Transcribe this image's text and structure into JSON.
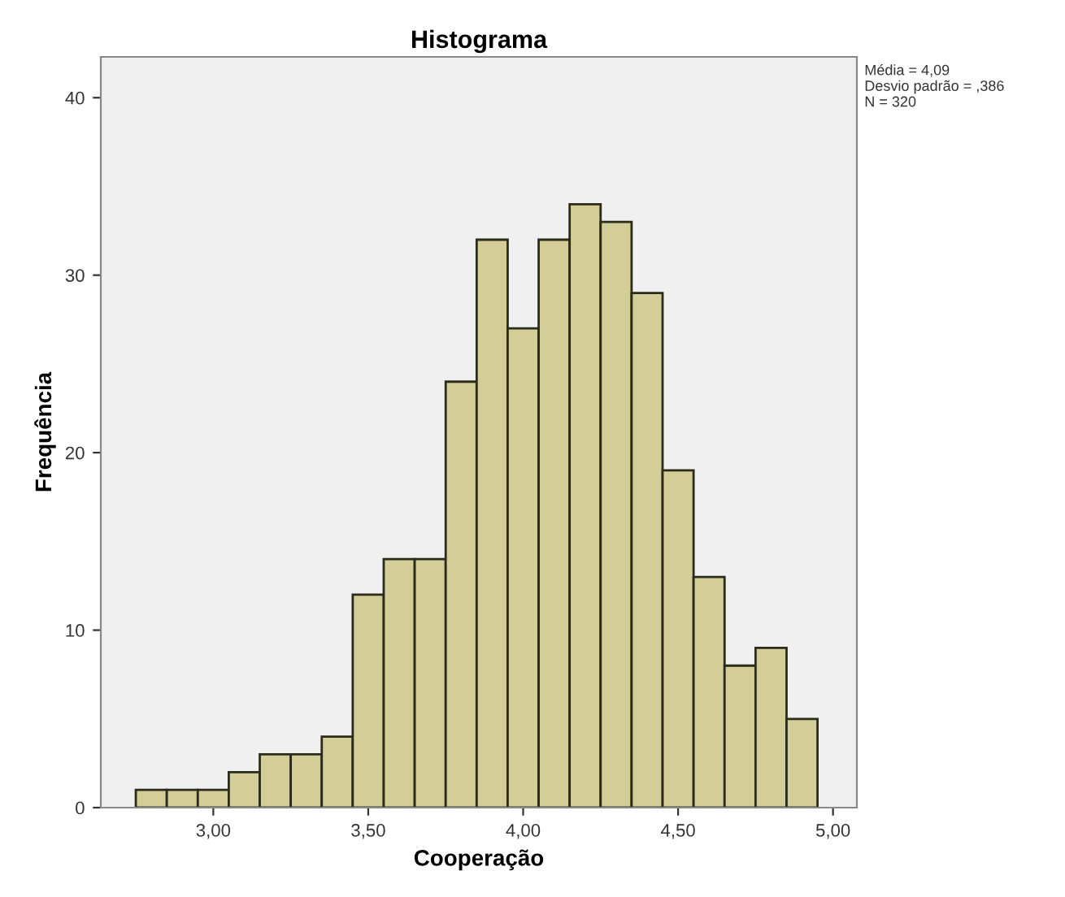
{
  "chart_data": {
    "type": "histogram",
    "title": "Histograma",
    "xlabel": "Cooperação",
    "ylabel": "Frequência",
    "bins": [
      2.75,
      2.85,
      2.95,
      3.05,
      3.15,
      3.25,
      3.35,
      3.45,
      3.55,
      3.65,
      3.75,
      3.85,
      3.95,
      4.05,
      4.15,
      4.25,
      4.35,
      4.45,
      4.55,
      4.65,
      4.75,
      4.85,
      4.95
    ],
    "values": [
      1,
      1,
      1,
      2,
      3,
      3,
      4,
      12,
      14,
      14,
      24,
      32,
      27,
      32,
      34,
      33,
      29,
      19,
      13,
      8,
      9,
      5
    ],
    "color": "#d3ce97",
    "xlim": [
      2.637,
      5.077
    ],
    "xticks": [
      {
        "value": 3.0,
        "label": "3,00"
      },
      {
        "value": 3.5,
        "label": "3,50"
      },
      {
        "value": 4.0,
        "label": "4,00"
      },
      {
        "value": 4.5,
        "label": "4,50"
      },
      {
        "value": 5.0,
        "label": "5,00"
      }
    ],
    "ylim": [
      0,
      42.3
    ],
    "yticks": [
      0,
      10,
      20,
      30,
      40
    ],
    "annotations": [
      "Média = 4,09\nDesvio padrão = ,386\nN = 320"
    ],
    "grid": false,
    "legend": false
  }
}
